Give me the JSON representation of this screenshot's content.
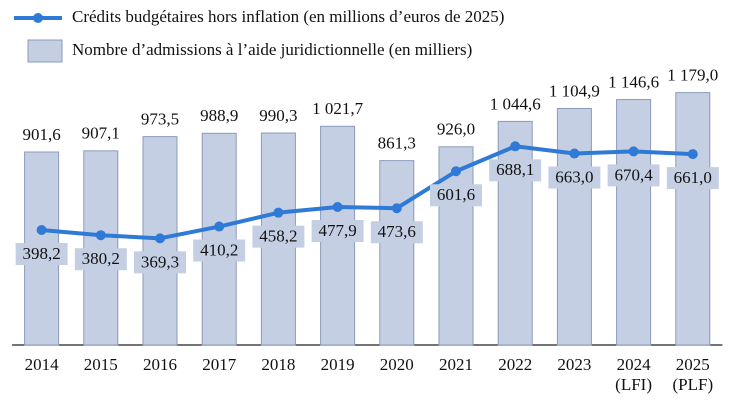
{
  "chart_data": {
    "type": "bar",
    "categories": [
      "2014",
      "2015",
      "2016",
      "2017",
      "2018",
      "2019",
      "2020",
      "2021",
      "2022",
      "2023",
      "2024 (LFI)",
      "2025 (PLF)"
    ],
    "series": [
      {
        "name": "Crédits budgétaires hors inflation (en millions d’euros de 2025)",
        "type": "line",
        "axis": "y2",
        "color": "#2f7ad6",
        "values": [
          398.2,
          380.2,
          369.3,
          410.2,
          458.2,
          477.9,
          473.6,
          601.6,
          688.1,
          663.0,
          670.4,
          661.0
        ],
        "value_labels": [
          "398,2",
          "380,2",
          "369,3",
          "410,2",
          "458,2",
          "477,9",
          "473,6",
          "601,6",
          "688,1",
          "663,0",
          "670,4",
          "661,0"
        ]
      },
      {
        "name": "Nombre d’admissions à l’aide juridictionnelle (en milliers)",
        "type": "bar",
        "axis": "y",
        "color": "#c5cfe3",
        "values": [
          901.6,
          907.1,
          973.5,
          988.9,
          990.3,
          1021.7,
          861.3,
          926.0,
          1044.6,
          1104.9,
          1146.6,
          1179.0
        ],
        "value_labels": [
          "901,6",
          "907,1",
          "973,5",
          "988,9",
          "990,3",
          "1 021,7",
          "861,3",
          "926,0",
          "1 044,6",
          "1 104,9",
          "1 146,6",
          "1 179,0"
        ]
      }
    ],
    "ylim": [
      0,
      1565
    ],
    "y2lim": [
      0,
      1160
    ]
  }
}
